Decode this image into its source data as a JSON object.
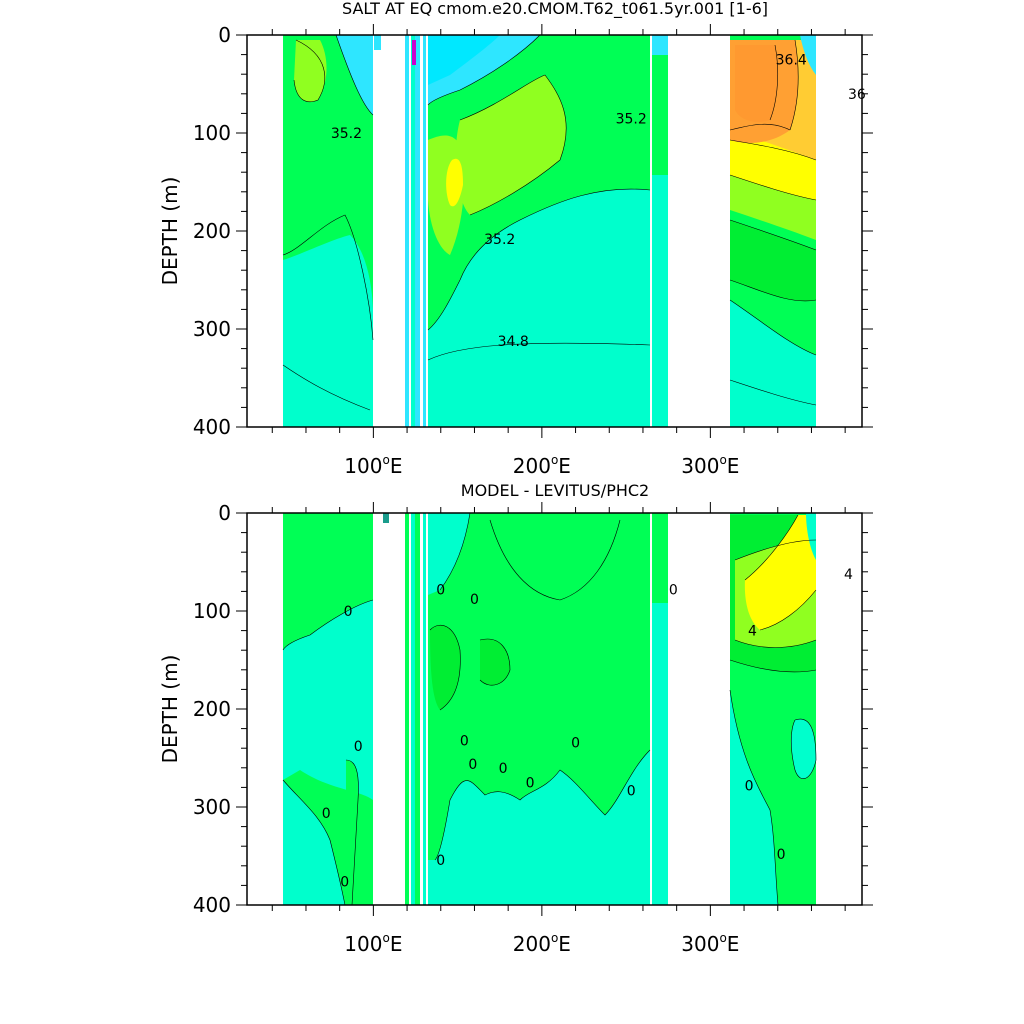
{
  "colors": {
    "cyan_light": "#00ffcc",
    "cyan": "#00e8ff",
    "sky": "#2ee6ff",
    "green": "#00ff55",
    "green_dark": "#00ee33",
    "lime": "#90ff20",
    "yellow": "#ffff00",
    "gold": "#ffcc33",
    "orange": "#ffa033",
    "orange_dark": "#ff9930",
    "magenta": "#cc00cc",
    "land": "#ffffff"
  },
  "chart_data": [
    {
      "type": "contour",
      "title": "SALT AT EQ cmom.e20.CMOM.T62_t061.5yr.001 [1-6]",
      "xlabel": "",
      "ylabel": "DEPTH (m)",
      "xlim": [
        25,
        390
      ],
      "ylim": [
        400,
        0
      ],
      "x_ticks": [
        {
          "value": 100,
          "label": "100°E",
          "num": "100",
          "deg": "o",
          "suf": "E"
        },
        {
          "value": 200,
          "label": "200°E",
          "num": "200",
          "deg": "o",
          "suf": "E"
        },
        {
          "value": 300,
          "label": "300°E",
          "num": "300",
          "deg": "o",
          "suf": "E"
        }
      ],
      "y_ticks": [
        0,
        100,
        200,
        300,
        400
      ],
      "contour_labels": [
        {
          "text": "35.2",
          "lon": 84,
          "depth": 100
        },
        {
          "text": "35.2",
          "lon": 175,
          "depth": 208
        },
        {
          "text": "35.2",
          "lon": 253,
          "depth": 85
        },
        {
          "text": "34.8",
          "lon": 183,
          "depth": 312
        },
        {
          "text": "36.4",
          "lon": 348,
          "depth": 25
        },
        {
          "text": "36",
          "lon": 387,
          "depth": 60
        }
      ]
    },
    {
      "type": "contour",
      "title": "MODEL - LEVITUS/PHC2",
      "xlabel": "",
      "ylabel": "DEPTH (m)",
      "xlim": [
        25,
        390
      ],
      "ylim": [
        400,
        0
      ],
      "x_ticks": [
        {
          "value": 100,
          "label": "100°E",
          "num": "100",
          "deg": "o",
          "suf": "E"
        },
        {
          "value": 200,
          "label": "200°E",
          "num": "200",
          "deg": "o",
          "suf": "E"
        },
        {
          "value": 300,
          "label": "300°E",
          "num": "300",
          "deg": "o",
          "suf": "E"
        }
      ],
      "y_ticks": [
        0,
        100,
        200,
        300,
        400
      ],
      "contour_labels": [
        {
          "text": "0",
          "lon": 85,
          "depth": 100
        },
        {
          "text": "0",
          "lon": 140,
          "depth": 78
        },
        {
          "text": "0",
          "lon": 160,
          "depth": 88
        },
        {
          "text": "0",
          "lon": 278,
          "depth": 78
        },
        {
          "text": "0",
          "lon": 91,
          "depth": 238
        },
        {
          "text": "0",
          "lon": 154,
          "depth": 232
        },
        {
          "text": "0",
          "lon": 159,
          "depth": 256
        },
        {
          "text": "0",
          "lon": 177,
          "depth": 260
        },
        {
          "text": "0",
          "lon": 193,
          "depth": 275
        },
        {
          "text": "0",
          "lon": 220,
          "depth": 234
        },
        {
          "text": "0",
          "lon": 253,
          "depth": 283
        },
        {
          "text": "0",
          "lon": 72,
          "depth": 306
        },
        {
          "text": "0",
          "lon": 83,
          "depth": 376
        },
        {
          "text": "0",
          "lon": 140,
          "depth": 354
        },
        {
          "text": "0",
          "lon": 323,
          "depth": 278
        },
        {
          "text": "0",
          "lon": 342,
          "depth": 348
        },
        {
          "text": "4",
          "lon": 382,
          "depth": 62
        },
        {
          "text": "4",
          "lon": 325,
          "depth": 120
        }
      ]
    }
  ]
}
